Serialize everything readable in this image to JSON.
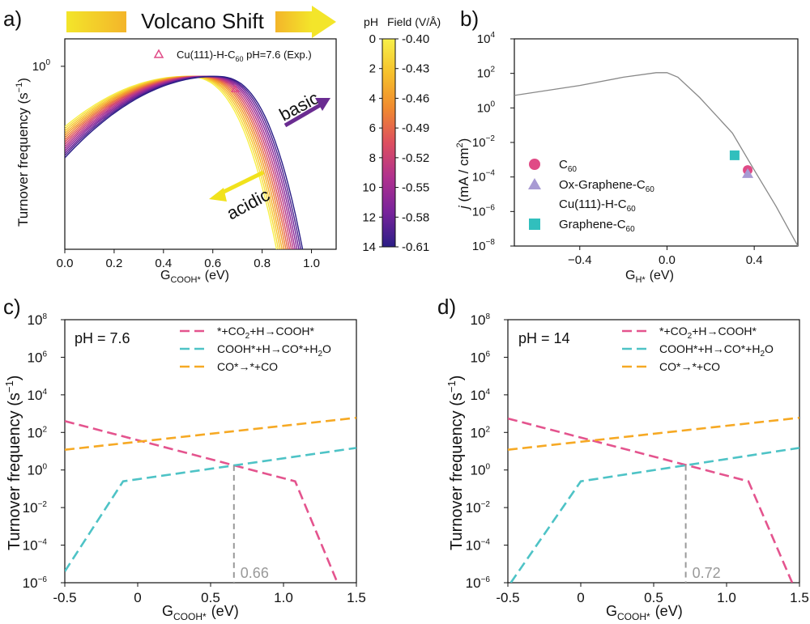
{
  "figure": {
    "panel_labels": [
      "a)",
      "b)",
      "c)",
      "d)"
    ]
  },
  "colors": {
    "pink": "#e4548e",
    "teal": "#4ec3c6",
    "orange": "#f6a924",
    "purple_arrow": "#6a2c91",
    "yellow_arrow": "#f1e21c",
    "gray_curve": "#888888",
    "gray_dash": "#999999",
    "graphene_marker": "#31bfbd",
    "c60_marker": "#e04a86",
    "ox_marker": "#a89ad3"
  },
  "chart_data": [
    {
      "id": "a",
      "type": "line",
      "xlabel_main": "G",
      "xlabel_sub": "COOH*",
      "xlabel_unit": "(eV)",
      "ylabel": "Turnover frequency (s",
      "ylabel_sup": "−1",
      "ylabel_end": ")",
      "xlim": [
        0.0,
        1.1
      ],
      "ylim_log10": [
        -1.0,
        0.15
      ],
      "xticks": [
        0.0,
        0.2,
        0.4,
        0.6,
        0.8,
        1.0
      ],
      "xtick_labels": [
        "0.0",
        "0.2",
        "0.4",
        "0.6",
        "0.8",
        "1.0"
      ],
      "ytick_labels": [
        {
          "value": 1.0,
          "label": "10",
          "sup": "0"
        }
      ],
      "banner": "Volcano Shift",
      "annotations": {
        "basic": "basic",
        "acidic": "acidic"
      },
      "legend": {
        "label": "Cu(111)-H-C",
        "sub": "60",
        "rest": " pH=7.6 (Exp.)"
      },
      "experimental_point": {
        "x": 0.69,
        "y": 0.75
      },
      "family": {
        "pH_values": [
          0,
          1,
          2,
          3,
          4,
          5,
          6,
          7,
          8,
          9,
          10,
          11,
          12,
          13,
          14
        ],
        "peak_x_range": [
          0.49,
          0.61
        ],
        "peak_y": 0.88,
        "cutoff_x_range": [
          1.0,
          1.1
        ],
        "left_end_log10_range": [
          -0.33,
          -0.5
        ]
      },
      "colorbar": {
        "header_left": "pH",
        "header_right": "Field (V/Å)",
        "pH_ticks": [
          "0",
          "2",
          "4",
          "6",
          "8",
          "10",
          "12",
          "14"
        ],
        "field_ticks": [
          "-0.40",
          "-0.43",
          "-0.46",
          "-0.49",
          "-0.52",
          "-0.55",
          "-0.58",
          "-0.61"
        ],
        "gradient": [
          "#f7f04a",
          "#f6c02b",
          "#f08a2f",
          "#dd4f5f",
          "#b0318e",
          "#78239b",
          "#2b1e86"
        ]
      }
    },
    {
      "id": "b",
      "type": "line",
      "xlabel_main": "G",
      "xlabel_sub": "H*",
      "xlabel_unit": "(eV)",
      "ylabel_j": "j",
      "ylabel": " (mA / cm",
      "ylabel_sup": "2",
      "ylabel_end": ")",
      "xlim": [
        -0.7,
        0.6
      ],
      "ylim_log10": [
        -8,
        4
      ],
      "xticks": [
        -0.4,
        0.0,
        0.4
      ],
      "xtick_labels": [
        "−0.4",
        "0.0",
        "0.4"
      ],
      "yticks_log10": [
        -8,
        -6,
        -4,
        -2,
        0,
        2,
        4
      ],
      "curve": [
        [
          -0.7,
          5.3
        ],
        [
          -0.4,
          20
        ],
        [
          -0.2,
          60
        ],
        [
          -0.05,
          110
        ],
        [
          0.0,
          110
        ],
        [
          0.05,
          60
        ],
        [
          0.15,
          4
        ],
        [
          0.3,
          0.035
        ],
        [
          0.4,
          0.00025
        ],
        [
          0.5,
          2e-06
        ],
        [
          0.6,
          1e-08
        ]
      ],
      "points": [
        {
          "name": "C",
          "sub": "60",
          "x": 0.37,
          "y": 0.00025,
          "marker": "circle",
          "color_key": "c60_marker"
        },
        {
          "name": "Ox-Graphene-C",
          "sub": "60",
          "x": 0.37,
          "y": 0.00015,
          "marker": "triangle",
          "color_key": "ox_marker"
        },
        {
          "name": "Cu(111)-H-C",
          "sub": "60",
          "marker": "none"
        },
        {
          "name": "Graphene-C",
          "sub": "60",
          "x": 0.31,
          "y": 0.0018,
          "marker": "square",
          "color_key": "graphene_marker"
        }
      ]
    },
    {
      "id": "c",
      "type": "line",
      "annotation": "pH = 7.6",
      "xlabel_main": "G",
      "xlabel_sub": "COOH*",
      "xlabel_unit": "(eV)",
      "ylabel": "Turnover frequency (s",
      "ylabel_sup": "−1",
      "ylabel_end": ")",
      "xlim": [
        -0.5,
        1.5
      ],
      "ylim_log10": [
        -6,
        8
      ],
      "xticks": [
        -0.5,
        0.0,
        0.5,
        1.0,
        1.5
      ],
      "xtick_labels": [
        "-0.5",
        "0",
        "0.5",
        "1.0",
        "1.5"
      ],
      "yticks_log10": [
        -6,
        -4,
        -2,
        0,
        2,
        4,
        6,
        8
      ],
      "vline": {
        "x": 0.66,
        "label": "0.66"
      },
      "series": [
        {
          "name": "*+CO",
          "name_sub": "2",
          "name_rest": "+H→COOH*",
          "color_key": "pink",
          "points": [
            [
              -0.5,
              400
            ],
            [
              1.08,
              0.25
            ],
            [
              1.37,
              1e-06
            ]
          ]
        },
        {
          "name": "COOH*+H→CO*+H",
          "name_sub": "2",
          "name_rest": "O",
          "color_key": "teal",
          "points": [
            [
              -0.5,
              4e-06
            ],
            [
              -0.1,
              0.25
            ],
            [
              1.5,
              15
            ]
          ]
        },
        {
          "name": "CO*→*+CO",
          "name_sub": "",
          "name_rest": "",
          "color_key": "orange",
          "points": [
            [
              -0.5,
              12
            ],
            [
              1.5,
              600
            ]
          ]
        }
      ]
    },
    {
      "id": "d",
      "type": "line",
      "annotation": "pH = 14",
      "xlabel_main": "G",
      "xlabel_sub": "COOH*",
      "xlabel_unit": "(eV)",
      "ylabel": "Turnover frequency (s",
      "ylabel_sup": "−1",
      "ylabel_end": ")",
      "xlim": [
        -0.5,
        1.5
      ],
      "ylim_log10": [
        -6,
        8
      ],
      "xticks": [
        -0.5,
        0.0,
        0.5,
        1.0,
        1.5
      ],
      "xtick_labels": [
        "-0.5",
        "0",
        "0.5",
        "1.0",
        "1.5"
      ],
      "yticks_log10": [
        -6,
        -4,
        -2,
        0,
        2,
        4,
        6,
        8
      ],
      "vline": {
        "x": 0.72,
        "label": "0.72"
      },
      "series": [
        {
          "name": "*+CO",
          "name_sub": "2",
          "name_rest": "+H→COOH*",
          "color_key": "pink",
          "points": [
            [
              -0.5,
              550
            ],
            [
              1.15,
              0.25
            ],
            [
              1.45,
              1e-06
            ]
          ]
        },
        {
          "name": "COOH*+H→CO*+H",
          "name_sub": "2",
          "name_rest": "O",
          "color_key": "teal",
          "points": [
            [
              -0.48,
              1e-06
            ],
            [
              0.0,
              0.25
            ],
            [
              1.5,
              15
            ]
          ]
        },
        {
          "name": "CO*→*+CO",
          "name_sub": "",
          "name_rest": "",
          "color_key": "orange",
          "points": [
            [
              -0.5,
              12
            ],
            [
              1.5,
              600
            ]
          ]
        }
      ]
    }
  ]
}
